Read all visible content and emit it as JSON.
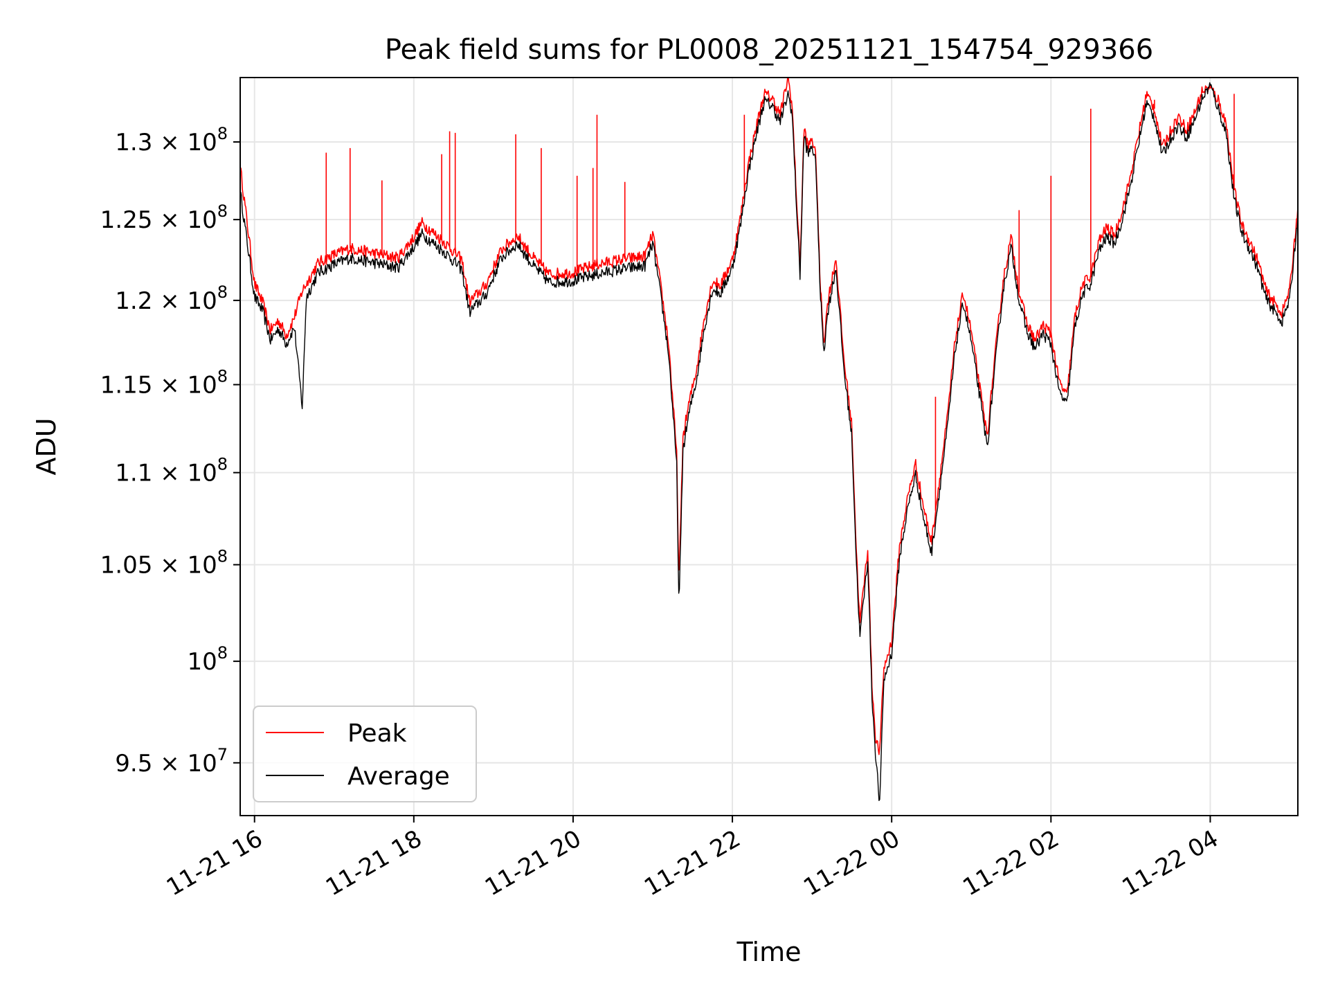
{
  "chart_data": {
    "type": "line",
    "title": "Peak field sums for PL0008_20251121_154754_929366",
    "xlabel": "Time",
    "ylabel": "ADU",
    "yscale": "log",
    "xlim": [
      15.82,
      29.1
    ],
    "ylim": [
      92500000,
      134300000
    ],
    "grid": true,
    "legend_position": "lower-left",
    "x_ticks": [
      {
        "value": 16,
        "label": "11-21 16"
      },
      {
        "value": 18,
        "label": "11-21 18"
      },
      {
        "value": 20,
        "label": "11-21 20"
      },
      {
        "value": 22,
        "label": "11-21 22"
      },
      {
        "value": 24,
        "label": "11-22 00"
      },
      {
        "value": 26,
        "label": "11-22 02"
      },
      {
        "value": 28,
        "label": "11-22 04"
      }
    ],
    "y_ticks": [
      {
        "value": 95000000,
        "mantissa": "9.5",
        "exponent": "7"
      },
      {
        "value": 100000000,
        "mantissa": "",
        "exponent": "8"
      },
      {
        "value": 105000000,
        "mantissa": "1.05",
        "exponent": "8"
      },
      {
        "value": 110000000,
        "mantissa": "1.1",
        "exponent": "8"
      },
      {
        "value": 115000000,
        "mantissa": "1.15",
        "exponent": "8"
      },
      {
        "value": 120000000,
        "mantissa": "1.2",
        "exponent": "8"
      },
      {
        "value": 125000000,
        "mantissa": "1.25",
        "exponent": "8"
      },
      {
        "value": 130000000,
        "mantissa": "1.3",
        "exponent": "8"
      }
    ],
    "x_unit_note": "hours since 2025-11-21 00:00",
    "series": [
      {
        "name": "Peak",
        "color": "#ff0000",
        "x": [
          15.82,
          16.0,
          16.1,
          16.2,
          16.3,
          16.4,
          16.5,
          16.6,
          16.65,
          16.8,
          17.0,
          17.2,
          17.5,
          17.8,
          18.0,
          18.1,
          18.4,
          18.6,
          18.7,
          18.9,
          19.1,
          19.3,
          19.5,
          19.7,
          20.0,
          20.3,
          20.6,
          20.9,
          21.0,
          21.1,
          21.2,
          21.3,
          21.33,
          21.38,
          21.45,
          21.55,
          21.65,
          21.75,
          21.85,
          22.0,
          22.1,
          22.2,
          22.3,
          22.4,
          22.5,
          22.6,
          22.7,
          22.75,
          22.8,
          22.85,
          22.9,
          22.95,
          23.0,
          23.05,
          23.1,
          23.15,
          23.2,
          23.3,
          23.4,
          23.5,
          23.55,
          23.6,
          23.7,
          23.75,
          23.8,
          23.85,
          23.9,
          24.0,
          24.1,
          24.2,
          24.3,
          24.4,
          24.5,
          24.6,
          24.7,
          24.8,
          24.9,
          25.0,
          25.1,
          25.2,
          25.3,
          25.4,
          25.5,
          25.6,
          25.7,
          25.8,
          25.9,
          26.0,
          26.1,
          26.2,
          26.3,
          26.4,
          26.5,
          26.6,
          26.7,
          26.8,
          26.9,
          27.0,
          27.1,
          27.2,
          27.3,
          27.4,
          27.5,
          27.6,
          27.7,
          27.8,
          27.9,
          28.0,
          28.1,
          28.2,
          28.3,
          28.4,
          28.5,
          28.6,
          28.7,
          28.8,
          28.9,
          29.0,
          29.1
        ],
        "y": [
          128400000,
          121000000,
          119900000,
          118200000,
          118800000,
          117900000,
          119000000,
          120600000,
          121000000,
          122300000,
          122800000,
          123200000,
          122900000,
          122600000,
          123900000,
          124800000,
          123500000,
          122500000,
          119900000,
          120900000,
          123100000,
          124000000,
          122600000,
          121600000,
          121700000,
          122200000,
          122500000,
          122700000,
          124100000,
          120900000,
          117400000,
          111000000,
          103900000,
          112000000,
          113800000,
          115900000,
          119000000,
          121200000,
          120900000,
          122500000,
          125100000,
          128500000,
          131000000,
          133200000,
          132900000,
          131800000,
          134300000,
          132400000,
          127000000,
          122000000,
          131000000,
          129600000,
          130300000,
          128900000,
          121200000,
          117500000,
          120000000,
          122600000,
          116500000,
          112600000,
          106400000,
          101900000,
          105900000,
          99000000,
          96100000,
          95500000,
          99600000,
          101000000,
          106000000,
          108600000,
          110500000,
          108100000,
          106200000,
          109600000,
          113100000,
          117700000,
          120500000,
          118100000,
          115000000,
          112000000,
          116800000,
          121200000,
          123900000,
          120500000,
          118600000,
          117600000,
          118500000,
          118000000,
          115200000,
          114300000,
          119000000,
          121000000,
          121500000,
          123600000,
          124500000,
          124000000,
          125700000,
          127800000,
          130500000,
          133200000,
          132200000,
          129600000,
          130700000,
          131700000,
          130800000,
          131900000,
          133400000,
          133600000,
          132800000,
          131200000,
          126900000,
          124600000,
          123600000,
          122400000,
          120600000,
          119900000,
          119200000,
          120700000,
          125800000
        ],
        "spikes": [
          {
            "x": 16.9,
            "y": 129300000
          },
          {
            "x": 17.2,
            "y": 129600000
          },
          {
            "x": 17.6,
            "y": 127500000
          },
          {
            "x": 18.35,
            "y": 129200000
          },
          {
            "x": 18.45,
            "y": 130700000
          },
          {
            "x": 18.52,
            "y": 130600000
          },
          {
            "x": 19.28,
            "y": 130500000
          },
          {
            "x": 19.6,
            "y": 129600000
          },
          {
            "x": 20.05,
            "y": 127800000
          },
          {
            "x": 20.25,
            "y": 128300000
          },
          {
            "x": 20.3,
            "y": 131800000
          },
          {
            "x": 20.65,
            "y": 127400000
          },
          {
            "x": 22.15,
            "y": 131800000
          },
          {
            "x": 22.7,
            "y": 134300000
          },
          {
            "x": 24.55,
            "y": 114300000
          },
          {
            "x": 25.6,
            "y": 125600000
          },
          {
            "x": 26.0,
            "y": 127800000
          },
          {
            "x": 26.5,
            "y": 132200000
          },
          {
            "x": 27.3,
            "y": 132800000
          },
          {
            "x": 28.3,
            "y": 133200000
          }
        ]
      },
      {
        "name": "Average",
        "color": "#000000",
        "x": [
          15.82,
          16.0,
          16.1,
          16.2,
          16.3,
          16.4,
          16.5,
          16.6,
          16.65,
          16.8,
          17.0,
          17.2,
          17.5,
          17.8,
          18.0,
          18.1,
          18.4,
          18.6,
          18.7,
          18.9,
          19.1,
          19.3,
          19.5,
          19.7,
          20.0,
          20.3,
          20.6,
          20.9,
          21.0,
          21.1,
          21.2,
          21.3,
          21.33,
          21.38,
          21.45,
          21.55,
          21.65,
          21.75,
          21.85,
          22.0,
          22.1,
          22.2,
          22.3,
          22.4,
          22.5,
          22.6,
          22.7,
          22.75,
          22.8,
          22.85,
          22.9,
          22.95,
          23.0,
          23.05,
          23.1,
          23.15,
          23.2,
          23.3,
          23.4,
          23.5,
          23.55,
          23.6,
          23.7,
          23.75,
          23.8,
          23.85,
          23.9,
          24.0,
          24.1,
          24.2,
          24.3,
          24.4,
          24.5,
          24.6,
          24.7,
          24.8,
          24.9,
          25.0,
          25.1,
          25.2,
          25.3,
          25.4,
          25.5,
          25.6,
          25.7,
          25.8,
          25.9,
          26.0,
          26.1,
          26.2,
          26.3,
          26.4,
          26.5,
          26.6,
          26.7,
          26.8,
          26.9,
          27.0,
          27.1,
          27.2,
          27.3,
          27.4,
          27.5,
          27.6,
          27.7,
          27.8,
          27.9,
          28.0,
          28.1,
          28.2,
          28.3,
          28.4,
          28.5,
          28.6,
          28.7,
          28.8,
          28.9,
          29.0,
          29.1
        ],
        "y": [
          126800000,
          120200000,
          119400000,
          117600000,
          118300000,
          117400000,
          118400000,
          113700000,
          120200000,
          121700000,
          122200000,
          122600000,
          122300000,
          122000000,
          123300000,
          124100000,
          122900000,
          121900000,
          119300000,
          120300000,
          122600000,
          123500000,
          122100000,
          121100000,
          121200000,
          121600000,
          121900000,
          122100000,
          123500000,
          120300000,
          116800000,
          110400000,
          102600000,
          111300000,
          113200000,
          115300000,
          118400000,
          120700000,
          120400000,
          122000000,
          124600000,
          128000000,
          130500000,
          132700000,
          132400000,
          131300000,
          133200000,
          131900000,
          126400000,
          121500000,
          130500000,
          129100000,
          129800000,
          128400000,
          120700000,
          117000000,
          119400000,
          122000000,
          115900000,
          112000000,
          105800000,
          101200000,
          105300000,
          98400000,
          95300000,
          93000000,
          99000000,
          100400000,
          105400000,
          108000000,
          109900000,
          107500000,
          105600000,
          109000000,
          112500000,
          117100000,
          119900000,
          117500000,
          114500000,
          111400000,
          116200000,
          120600000,
          123300000,
          120000000,
          118100000,
          117100000,
          118000000,
          117400000,
          114600000,
          113800000,
          118400000,
          120400000,
          121000000,
          123000000,
          123900000,
          123500000,
          125100000,
          127200000,
          129900000,
          132600000,
          131600000,
          129100000,
          130200000,
          131100000,
          130300000,
          131400000,
          132900000,
          133800000,
          132200000,
          130600000,
          126300000,
          124100000,
          123100000,
          121900000,
          120100000,
          119400000,
          118700000,
          120100000,
          125200000
        ]
      }
    ]
  }
}
